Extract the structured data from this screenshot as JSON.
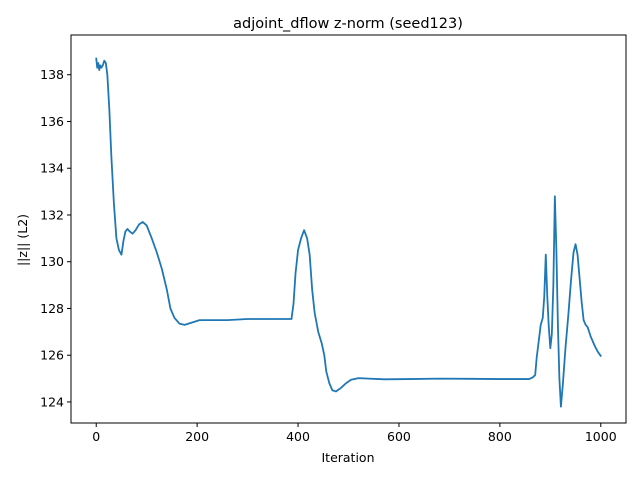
{
  "chart_data": {
    "type": "line",
    "title": "adjoint_dflow z-norm (seed123)",
    "xlabel": "Iteration",
    "ylabel": "||z|| (L2)",
    "xlim": [
      -50,
      1050
    ],
    "ylim": [
      123.1,
      139.7
    ],
    "xticks": [
      0,
      200,
      400,
      600,
      800,
      1000
    ],
    "yticks": [
      124,
      126,
      128,
      130,
      132,
      134,
      136,
      138
    ],
    "grid": false,
    "legend": "none",
    "series": [
      {
        "color": "#1f77b4",
        "points": [
          [
            0,
            138.7
          ],
          [
            2,
            138.3
          ],
          [
            4,
            138.5
          ],
          [
            6,
            138.2
          ],
          [
            8,
            138.4
          ],
          [
            10,
            138.3
          ],
          [
            13,
            138.4
          ],
          [
            16,
            138.6
          ],
          [
            19,
            138.5
          ],
          [
            22,
            138.0
          ],
          [
            26,
            136.5
          ],
          [
            30,
            134.5
          ],
          [
            35,
            132.5
          ],
          [
            40,
            131.0
          ],
          [
            45,
            130.5
          ],
          [
            50,
            130.3
          ],
          [
            54,
            130.9
          ],
          [
            58,
            131.3
          ],
          [
            62,
            131.4
          ],
          [
            66,
            131.3
          ],
          [
            72,
            131.2
          ],
          [
            78,
            131.35
          ],
          [
            85,
            131.6
          ],
          [
            92,
            131.7
          ],
          [
            100,
            131.55
          ],
          [
            110,
            131.0
          ],
          [
            120,
            130.4
          ],
          [
            130,
            129.7
          ],
          [
            140,
            128.8
          ],
          [
            147,
            128.0
          ],
          [
            155,
            127.6
          ],
          [
            165,
            127.35
          ],
          [
            175,
            127.3
          ],
          [
            190,
            127.4
          ],
          [
            205,
            127.5
          ],
          [
            230,
            127.5
          ],
          [
            260,
            127.5
          ],
          [
            300,
            127.55
          ],
          [
            340,
            127.55
          ],
          [
            370,
            127.55
          ],
          [
            387,
            127.55
          ],
          [
            391,
            128.2
          ],
          [
            395,
            129.5
          ],
          [
            400,
            130.5
          ],
          [
            406,
            131.0
          ],
          [
            412,
            131.35
          ],
          [
            418,
            131.0
          ],
          [
            423,
            130.3
          ],
          [
            428,
            128.8
          ],
          [
            433,
            127.8
          ],
          [
            440,
            127.0
          ],
          [
            447,
            126.5
          ],
          [
            452,
            126.0
          ],
          [
            456,
            125.3
          ],
          [
            462,
            124.8
          ],
          [
            468,
            124.5
          ],
          [
            475,
            124.45
          ],
          [
            485,
            124.6
          ],
          [
            495,
            124.8
          ],
          [
            505,
            124.95
          ],
          [
            520,
            125.02
          ],
          [
            540,
            125.0
          ],
          [
            570,
            124.97
          ],
          [
            620,
            124.98
          ],
          [
            680,
            125.0
          ],
          [
            740,
            124.99
          ],
          [
            800,
            124.98
          ],
          [
            858,
            124.98
          ],
          [
            865,
            125.05
          ],
          [
            870,
            125.15
          ],
          [
            873,
            125.9
          ],
          [
            877,
            126.6
          ],
          [
            881,
            127.3
          ],
          [
            885,
            127.6
          ],
          [
            888,
            128.5
          ],
          [
            891,
            130.3
          ],
          [
            894,
            128.5
          ],
          [
            897,
            127.2
          ],
          [
            900,
            126.3
          ],
          [
            903,
            126.9
          ],
          [
            906,
            129.0
          ],
          [
            909,
            132.8
          ],
          [
            912,
            130.5
          ],
          [
            915,
            127.3
          ],
          [
            918,
            125.0
          ],
          [
            921,
            123.8
          ],
          [
            925,
            124.8
          ],
          [
            930,
            126.3
          ],
          [
            936,
            127.8
          ],
          [
            941,
            129.2
          ],
          [
            946,
            130.4
          ],
          [
            950,
            130.75
          ],
          [
            954,
            130.3
          ],
          [
            958,
            129.3
          ],
          [
            962,
            128.3
          ],
          [
            966,
            127.5
          ],
          [
            970,
            127.3
          ],
          [
            974,
            127.2
          ],
          [
            980,
            126.8
          ],
          [
            988,
            126.4
          ],
          [
            994,
            126.15
          ],
          [
            1000,
            125.97
          ]
        ]
      }
    ]
  }
}
